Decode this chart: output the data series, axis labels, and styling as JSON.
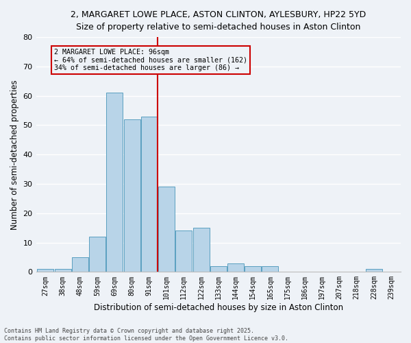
{
  "title_line1": "2, MARGARET LOWE PLACE, ASTON CLINTON, AYLESBURY, HP22 5YD",
  "title_line2": "Size of property relative to semi-detached houses in Aston Clinton",
  "xlabel": "Distribution of semi-detached houses by size in Aston Clinton",
  "ylabel": "Number of semi-detached properties",
  "categories": [
    "27sqm",
    "38sqm",
    "48sqm",
    "59sqm",
    "69sqm",
    "80sqm",
    "91sqm",
    "101sqm",
    "112sqm",
    "122sqm",
    "133sqm",
    "144sqm",
    "154sqm",
    "165sqm",
    "175sqm",
    "186sqm",
    "197sqm",
    "207sqm",
    "218sqm",
    "228sqm",
    "239sqm"
  ],
  "values": [
    1,
    1,
    5,
    12,
    61,
    52,
    53,
    29,
    14,
    15,
    2,
    3,
    2,
    2,
    0,
    0,
    0,
    0,
    0,
    1,
    0
  ],
  "bar_color": "#b8d4e8",
  "bar_edge_color": "#5a9fc0",
  "vline_x": 6.5,
  "vline_color": "#cc0000",
  "annotation_title": "2 MARGARET LOWE PLACE: 96sqm",
  "annotation_line1": "← 64% of semi-detached houses are smaller (162)",
  "annotation_line2": "34% of semi-detached houses are larger (86) →",
  "annotation_box_color": "#cc0000",
  "ylim": [
    0,
    80
  ],
  "yticks": [
    0,
    10,
    20,
    30,
    40,
    50,
    60,
    70,
    80
  ],
  "footer": "Contains HM Land Registry data © Crown copyright and database right 2025.\nContains public sector information licensed under the Open Government Licence v3.0.",
  "bg_color": "#eef2f7",
  "grid_color": "#ffffff"
}
